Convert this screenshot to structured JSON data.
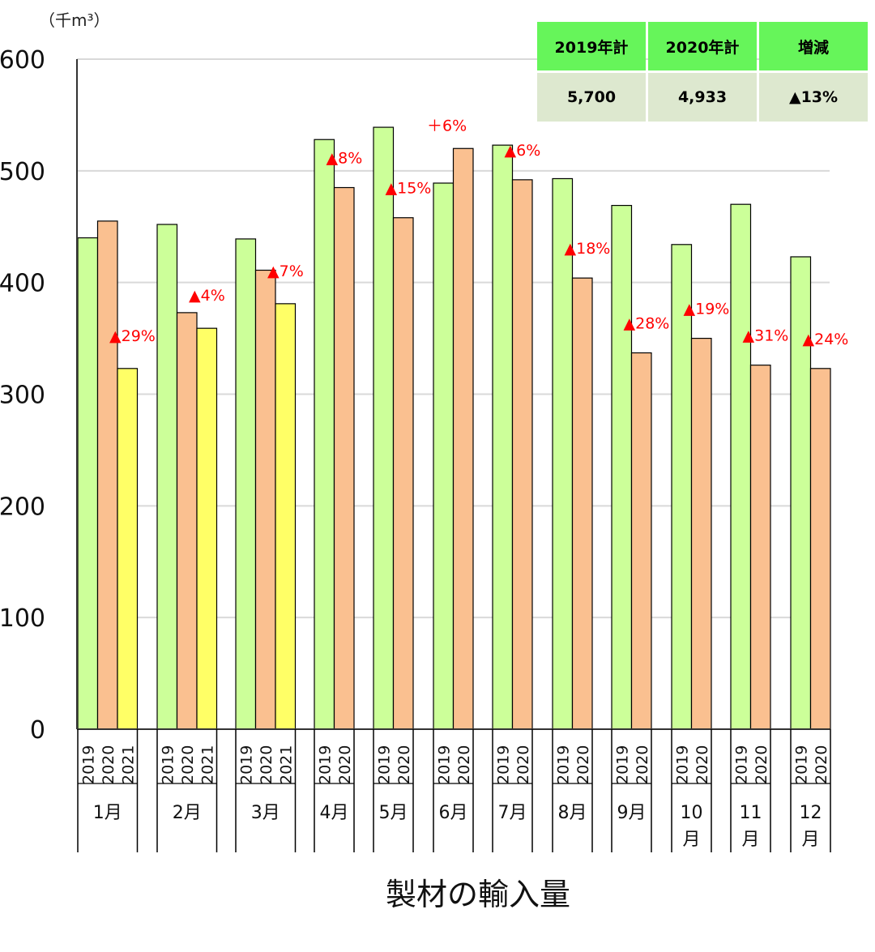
{
  "chart_data": {
    "type": "bar",
    "title": "製材の輸入量",
    "unit_label": "（千m³）",
    "ylim": [
      0,
      600
    ],
    "y_ticks": [
      "0",
      "100",
      "200",
      "300",
      "400",
      "500",
      "600"
    ],
    "grid": true,
    "colors": {
      "2019": "#ccff99",
      "2020": "#fac090",
      "2021": "#ffff66",
      "annotation": "#ff0000"
    },
    "groups": [
      {
        "label": "1月",
        "bars": [
          {
            "year": "2019",
            "value": 440
          },
          {
            "year": "2020",
            "value": 455
          },
          {
            "year": "2021",
            "value": 323
          }
        ],
        "annotation": "▲29%"
      },
      {
        "label": "2月",
        "bars": [
          {
            "year": "2019",
            "value": 452
          },
          {
            "year": "2020",
            "value": 373
          },
          {
            "year": "2021",
            "value": 359
          }
        ],
        "annotation": "▲4%"
      },
      {
        "label": "3月",
        "bars": [
          {
            "year": "2019",
            "value": 439
          },
          {
            "year": "2020",
            "value": 411
          },
          {
            "year": "2021",
            "value": 381
          }
        ],
        "annotation": "▲7%"
      },
      {
        "label": "4月",
        "bars": [
          {
            "year": "2019",
            "value": 528
          },
          {
            "year": "2020",
            "value": 485
          }
        ],
        "annotation": "▲8%"
      },
      {
        "label": "5月",
        "bars": [
          {
            "year": "2019",
            "value": 539
          },
          {
            "year": "2020",
            "value": 458
          }
        ],
        "annotation": "▲15%"
      },
      {
        "label": "6月",
        "bars": [
          {
            "year": "2019",
            "value": 489
          },
          {
            "year": "2020",
            "value": 520
          }
        ],
        "annotation": "＋6%"
      },
      {
        "label": "7月",
        "bars": [
          {
            "year": "2019",
            "value": 523
          },
          {
            "year": "2020",
            "value": 492
          }
        ],
        "annotation": "▲6%"
      },
      {
        "label": "8月",
        "bars": [
          {
            "year": "2019",
            "value": 493
          },
          {
            "year": "2020",
            "value": 404
          }
        ],
        "annotation": "▲18%"
      },
      {
        "label": "9月",
        "bars": [
          {
            "year": "2019",
            "value": 469
          },
          {
            "year": "2020",
            "value": 337
          }
        ],
        "annotation": "▲28%"
      },
      {
        "label": "10月",
        "bars": [
          {
            "year": "2019",
            "value": 434
          },
          {
            "year": "2020",
            "value": 350
          }
        ],
        "annotation": "▲19%"
      },
      {
        "label": "11月",
        "bars": [
          {
            "year": "2019",
            "value": 470
          },
          {
            "year": "2020",
            "value": 326
          }
        ],
        "annotation": "▲31%"
      },
      {
        "label": "12月",
        "bars": [
          {
            "year": "2019",
            "value": 423
          },
          {
            "year": "2020",
            "value": 323
          }
        ],
        "annotation": "▲24%"
      }
    ]
  },
  "summary_table": {
    "headers": [
      "2019年計",
      "2020年計",
      "増減"
    ],
    "values": [
      "5,700",
      "4,933",
      "▲13%"
    ]
  }
}
